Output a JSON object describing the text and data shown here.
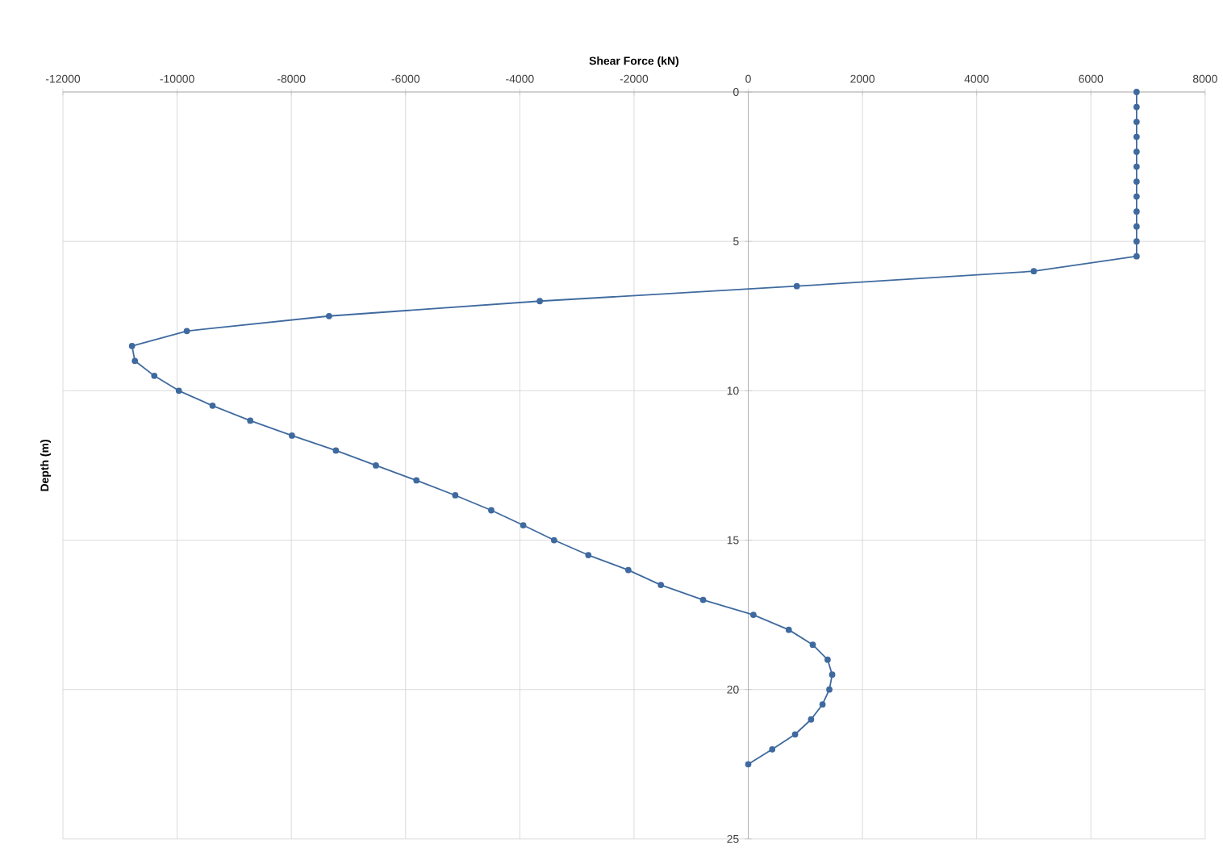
{
  "chart_data": {
    "type": "line",
    "xlabel": "Shear Force (kN)",
    "ylabel": "Depth (m)",
    "x": [
      6800,
      6800,
      6800,
      6800,
      6800,
      6800,
      6800,
      6800,
      6800,
      6800,
      6800,
      6800,
      5000,
      850,
      -3650,
      -7340,
      -9830,
      -10790,
      -10740,
      -10400,
      -9970,
      -9380,
      -8720,
      -7990,
      -7220,
      -6520,
      -5810,
      -5130,
      -4500,
      -3940,
      -3400,
      -2800,
      -2100,
      -1530,
      -790,
      90,
      710,
      1130,
      1390,
      1470,
      1420,
      1300,
      1100,
      820,
      420,
      0
    ],
    "values": [
      0,
      0.5,
      1,
      1.5,
      2,
      2.5,
      3,
      3.5,
      4,
      4.5,
      5,
      5.5,
      6,
      6.5,
      7,
      7.5,
      8,
      8.5,
      9,
      9.5,
      10,
      10.5,
      11,
      11.5,
      12,
      12.5,
      13,
      13.5,
      14,
      14.5,
      15,
      15.5,
      16,
      16.5,
      17,
      17.5,
      18,
      18.5,
      19,
      19.5,
      20,
      20.5,
      21,
      21.5,
      22,
      22.5
    ],
    "color": "#3f6a9f",
    "marker": "circle",
    "grid": true,
    "xlim": [
      -12000,
      8000
    ],
    "ylim": [
      25,
      0
    ],
    "xticks": [
      -12000,
      -10000,
      -8000,
      -6000,
      -4000,
      -2000,
      0,
      2000,
      4000,
      6000,
      8000
    ],
    "yticks": [
      0,
      5,
      10,
      15,
      20,
      25
    ]
  }
}
